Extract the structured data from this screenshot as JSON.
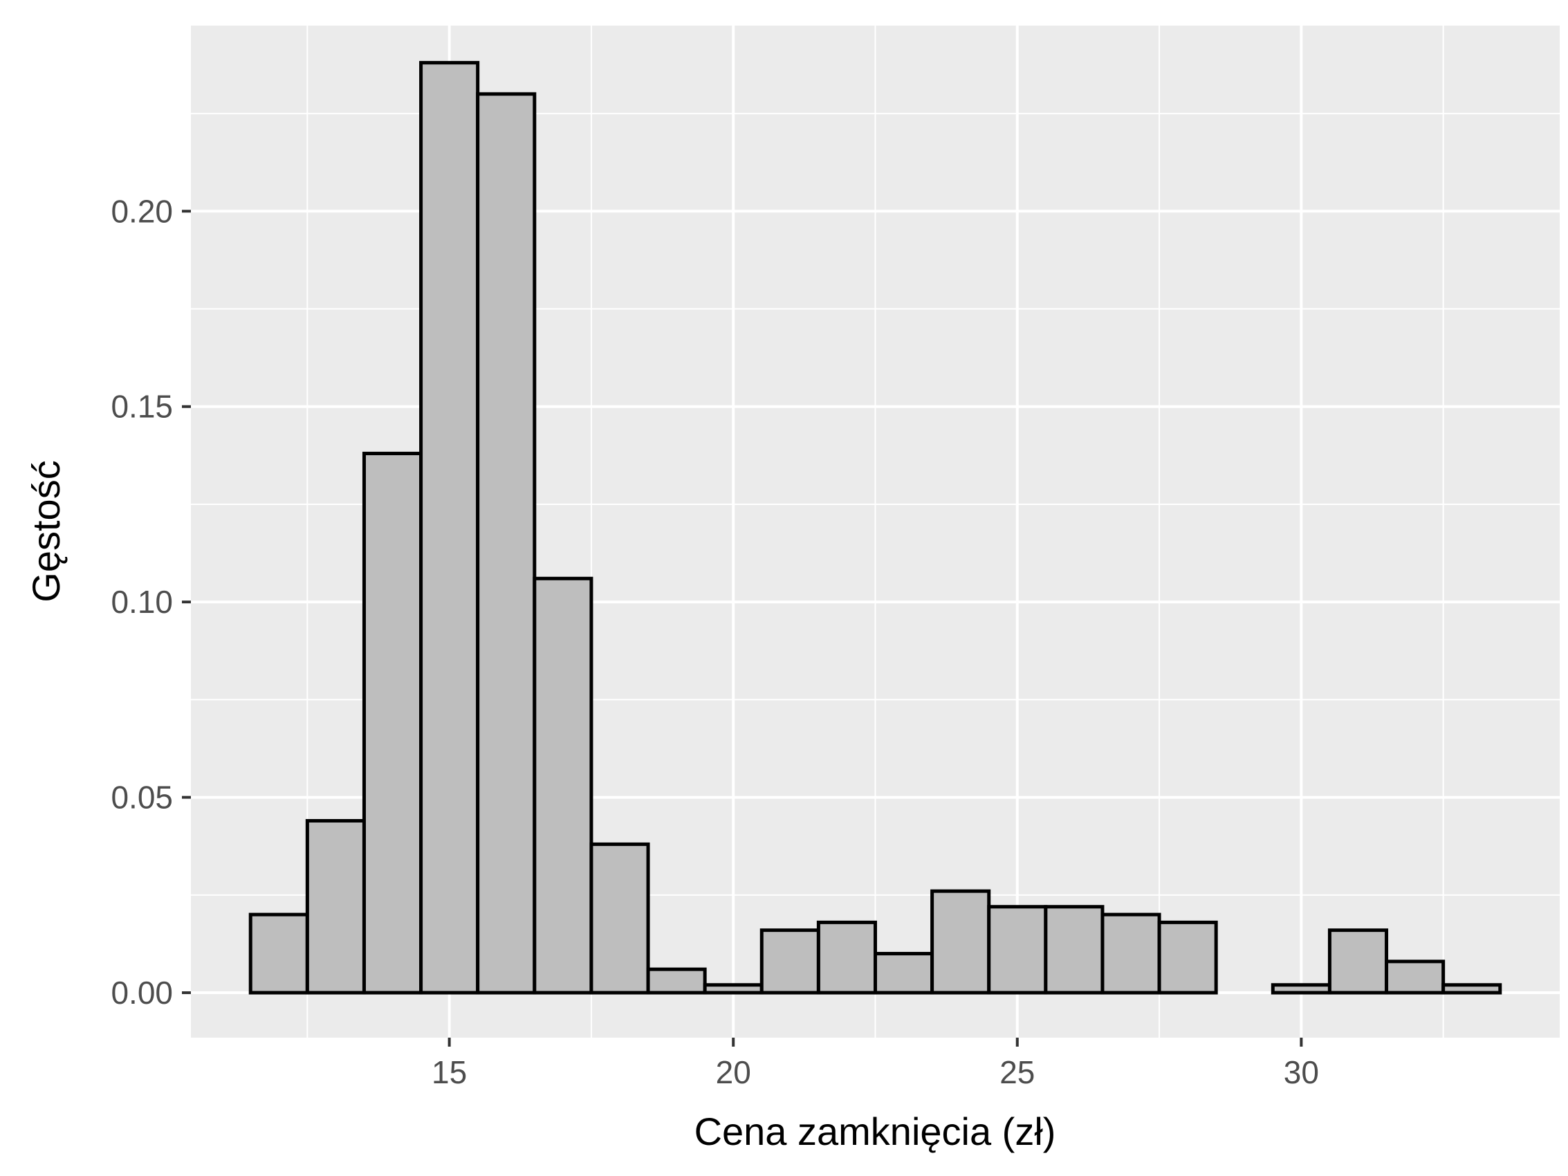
{
  "chart_data": {
    "type": "histogram",
    "xlabel": "Cena zamknięcia (zł)",
    "ylabel": "Gęstość",
    "xlim": [
      10.45,
      34.55
    ],
    "ylim": [
      -0.0115,
      0.2475
    ],
    "x_ticks": [
      15,
      20,
      25,
      30
    ],
    "x_tick_labels": [
      "15",
      "20",
      "25",
      "30"
    ],
    "x_minor_ticks": [
      12.5,
      17.5,
      22.5,
      27.5,
      32.5
    ],
    "y_ticks": [
      0,
      0.05,
      0.1,
      0.15,
      0.2
    ],
    "y_tick_labels": [
      "0.00",
      "0.05",
      "0.10",
      "0.15",
      "0.20"
    ],
    "y_minor_ticks": [
      0.025,
      0.075,
      0.125,
      0.175,
      0.225
    ],
    "grid": true,
    "bin_width": 1,
    "bins": [
      {
        "x0": 11.5,
        "x1": 12.5,
        "density": 0.02
      },
      {
        "x0": 12.5,
        "x1": 13.5,
        "density": 0.044
      },
      {
        "x0": 13.5,
        "x1": 14.5,
        "density": 0.138
      },
      {
        "x0": 14.5,
        "x1": 15.5,
        "density": 0.238
      },
      {
        "x0": 15.5,
        "x1": 16.5,
        "density": 0.23
      },
      {
        "x0": 16.5,
        "x1": 17.5,
        "density": 0.106
      },
      {
        "x0": 17.5,
        "x1": 18.5,
        "density": 0.038
      },
      {
        "x0": 18.5,
        "x1": 19.5,
        "density": 0.006
      },
      {
        "x0": 19.5,
        "x1": 20.5,
        "density": 0.002
      },
      {
        "x0": 20.5,
        "x1": 21.5,
        "density": 0.016
      },
      {
        "x0": 21.5,
        "x1": 22.5,
        "density": 0.018
      },
      {
        "x0": 22.5,
        "x1": 23.5,
        "density": 0.01
      },
      {
        "x0": 23.5,
        "x1": 24.5,
        "density": 0.026
      },
      {
        "x0": 24.5,
        "x1": 25.5,
        "density": 0.022
      },
      {
        "x0": 25.5,
        "x1": 26.5,
        "density": 0.022
      },
      {
        "x0": 26.5,
        "x1": 27.5,
        "density": 0.02
      },
      {
        "x0": 27.5,
        "x1": 28.5,
        "density": 0.018
      },
      {
        "x0": 28.5,
        "x1": 29.5,
        "density": 0.0
      },
      {
        "x0": 29.5,
        "x1": 30.5,
        "density": 0.002
      },
      {
        "x0": 30.5,
        "x1": 31.5,
        "density": 0.016
      },
      {
        "x0": 31.5,
        "x1": 32.5,
        "density": 0.008
      },
      {
        "x0": 32.5,
        "x1": 33.5,
        "density": 0.002
      }
    ],
    "colors": {
      "panel_background": "#ebebeb",
      "grid": "#ffffff",
      "bar_fill": "#bebebe",
      "bar_stroke": "#000000",
      "tick_text": "#4d4d4d",
      "tick_mark": "#333333",
      "title_text": "#000000"
    }
  }
}
